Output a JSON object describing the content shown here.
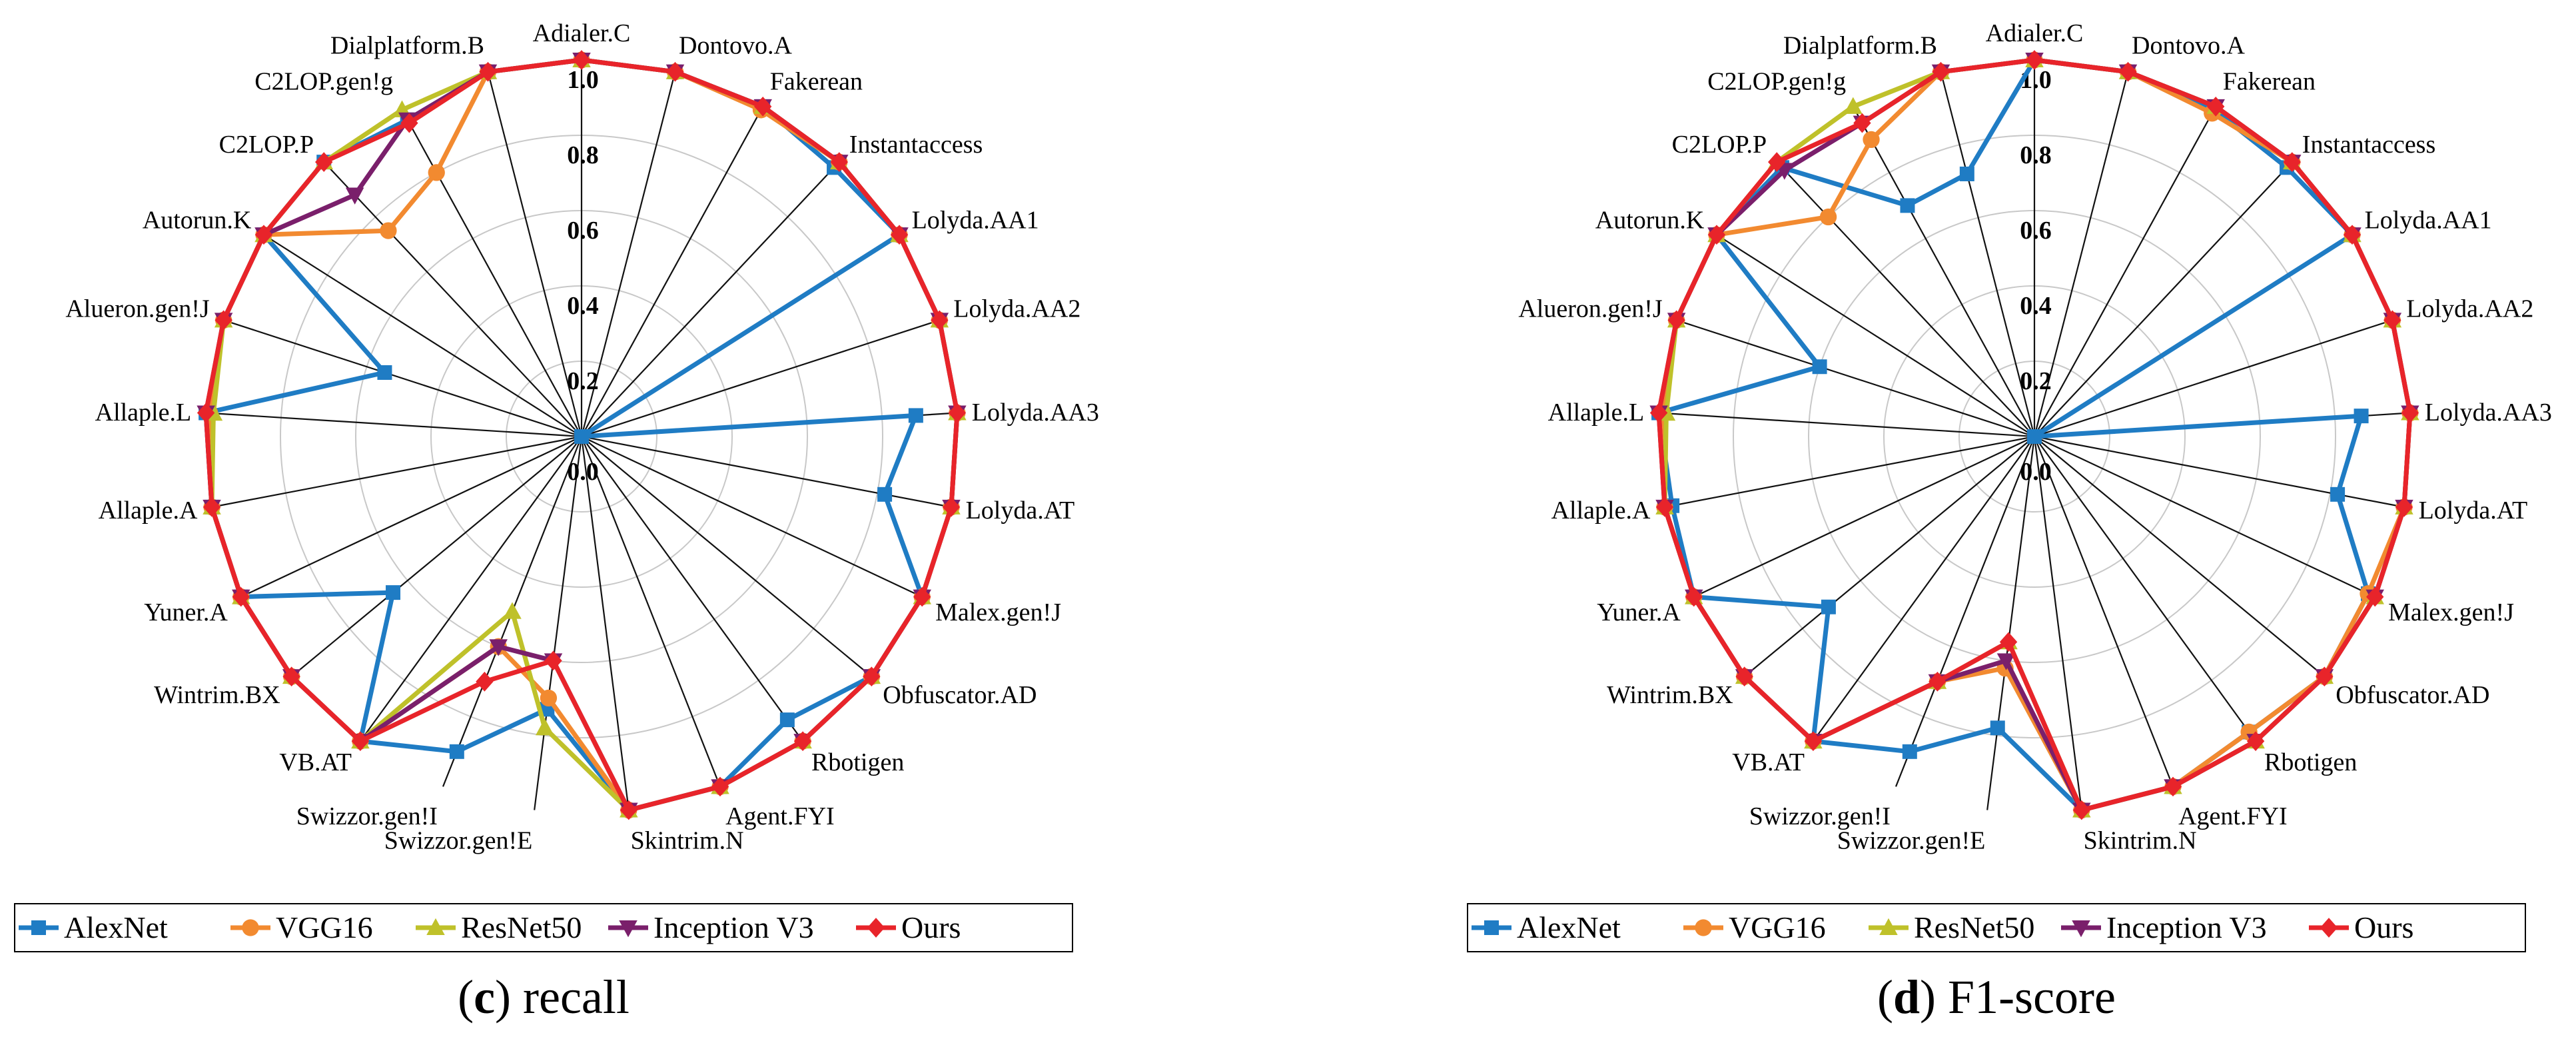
{
  "chart_data": [
    {
      "type": "radar",
      "caption": {
        "letter": "c",
        "text": "recall"
      },
      "rlim": [
        0,
        1
      ],
      "ticks": [
        "0.0",
        "0.2",
        "0.4",
        "0.6",
        "0.8",
        "1.0"
      ],
      "categories": [
        "Adialer.C",
        "Dontovo.A",
        "Fakerean",
        "Instantaccess",
        "Lolyda.AA1",
        "Lolyda.AA2",
        "Lolyda.AA3",
        "Lolyda.AT",
        "Malex.gen!J",
        "Obfuscator.AD",
        "Rbotigen",
        "Agent.FYI",
        "Skintrim.N",
        "Swizzor.gen!E",
        "Swizzor.gen!I",
        "VB.AT",
        "Wintrim.BX",
        "Yuner.A",
        "Allaple.A",
        "Allaple.L",
        "Alueron.gen!J",
        "Autorun.K",
        "C2LOP.P",
        "C2LOP.gen!g",
        "Dialplatform.B"
      ],
      "series": [
        {
          "name": "AlexNet",
          "color": "#1f7cc4",
          "marker": "square",
          "values": [
            1,
            1,
            1,
            0.98,
            1,
            0,
            0.89,
            0.82,
            1,
            1,
            0.93,
            1,
            1,
            0.73,
            0.9,
            1,
            0.65,
            1,
            1,
            1,
            0.55,
            1,
            1,
            0.96,
            1
          ]
        },
        {
          "name": "VGG16",
          "color": "#f28a30",
          "marker": "circle",
          "values": [
            1,
            1,
            0.99,
            1,
            1,
            1,
            1,
            1,
            1,
            1,
            1,
            1,
            1,
            0.7,
            0.6,
            1,
            1,
            1,
            1,
            0.99,
            1,
            1,
            0.75,
            0.8,
            1
          ]
        },
        {
          "name": "ResNet50",
          "color": "#bfc12a",
          "marker": "triangle",
          "values": [
            1,
            1,
            1,
            1,
            1,
            1,
            1,
            1,
            1,
            1,
            1,
            1,
            1,
            0.78,
            0.5,
            1,
            1,
            1,
            1,
            0.98,
            1,
            1,
            1,
            0.99,
            1
          ]
        },
        {
          "name": "Inception V3",
          "color": "#7a1f6b",
          "marker": "triangle-down",
          "values": [
            1,
            1,
            1,
            1,
            1,
            1,
            1,
            1,
            1,
            1,
            1,
            1,
            1,
            0.6,
            0.6,
            1,
            1,
            1,
            1,
            1,
            1,
            1,
            0.88,
            0.96,
            1
          ]
        },
        {
          "name": "Ours",
          "color": "#e8242a",
          "marker": "diamond",
          "values": [
            1,
            1,
            1,
            1,
            1,
            1,
            1,
            1,
            1,
            1,
            1,
            1,
            1,
            0.6,
            0.7,
            1,
            1,
            1,
            1,
            1,
            1,
            1,
            1,
            0.95,
            1
          ]
        }
      ]
    },
    {
      "type": "radar",
      "caption": {
        "letter": "d",
        "text": "F1-score"
      },
      "rlim": [
        0,
        1
      ],
      "ticks": [
        "0.0",
        "0.2",
        "0.4",
        "0.6",
        "0.8",
        "1.0"
      ],
      "categories": [
        "Adialer.C",
        "Dontovo.A",
        "Fakerean",
        "Instantaccess",
        "Lolyda.AA1",
        "Lolyda.AA2",
        "Lolyda.AA3",
        "Lolyda.AT",
        "Malex.gen!J",
        "Obfuscator.AD",
        "Rbotigen",
        "Agent.FYI",
        "Skintrim.N",
        "Swizzor.gen!E",
        "Swizzor.gen!I",
        "VB.AT",
        "Wintrim.BX",
        "Yuner.A",
        "Allaple.A",
        "Allaple.L",
        "Alueron.gen!J",
        "Autorun.K",
        "C2LOP.P",
        "C2LOP.gen!g",
        "Dialplatform.B"
      ],
      "series": [
        {
          "name": "AlexNet",
          "color": "#1f7cc4",
          "marker": "square",
          "values": [
            1,
            1,
            0.99,
            0.98,
            1,
            0,
            0.87,
            0.82,
            0.98,
            1,
            0.97,
            1,
            1,
            0.78,
            0.9,
            1,
            0.71,
            1,
            0.98,
            1,
            0.6,
            1,
            0.98,
            0.7,
            0.72
          ]
        },
        {
          "name": "VGG16",
          "color": "#f28a30",
          "marker": "circle",
          "values": [
            1,
            1,
            0.98,
            1,
            1,
            1,
            1,
            1,
            0.98,
            1,
            0.97,
            1,
            1,
            0.62,
            0.7,
            1,
            1,
            1,
            1,
            0.99,
            1,
            1,
            0.8,
            0.9,
            1
          ]
        },
        {
          "name": "ResNet50",
          "color": "#bfc12a",
          "marker": "triangle",
          "values": [
            1,
            1,
            1,
            1,
            1,
            1,
            1,
            1,
            1,
            1,
            1,
            1,
            1,
            0.55,
            0.7,
            1,
            1,
            1,
            1,
            0.98,
            1,
            1,
            1,
            1,
            1
          ]
        },
        {
          "name": "Inception V3",
          "color": "#7a1f6b",
          "marker": "triangle-down",
          "values": [
            1,
            1,
            1,
            1,
            1,
            1,
            1,
            1,
            1,
            1,
            1,
            1,
            1,
            0.6,
            0.7,
            1,
            1,
            1,
            1,
            1,
            1,
            1,
            0.97,
            0.95,
            1
          ]
        },
        {
          "name": "Ours",
          "color": "#e8242a",
          "marker": "diamond",
          "values": [
            1,
            1,
            1,
            1,
            1,
            1,
            1,
            1,
            1,
            1,
            1,
            1,
            1,
            0.55,
            0.7,
            1,
            1,
            1,
            1,
            1,
            1,
            1,
            1,
            0.95,
            1
          ]
        }
      ]
    }
  ]
}
